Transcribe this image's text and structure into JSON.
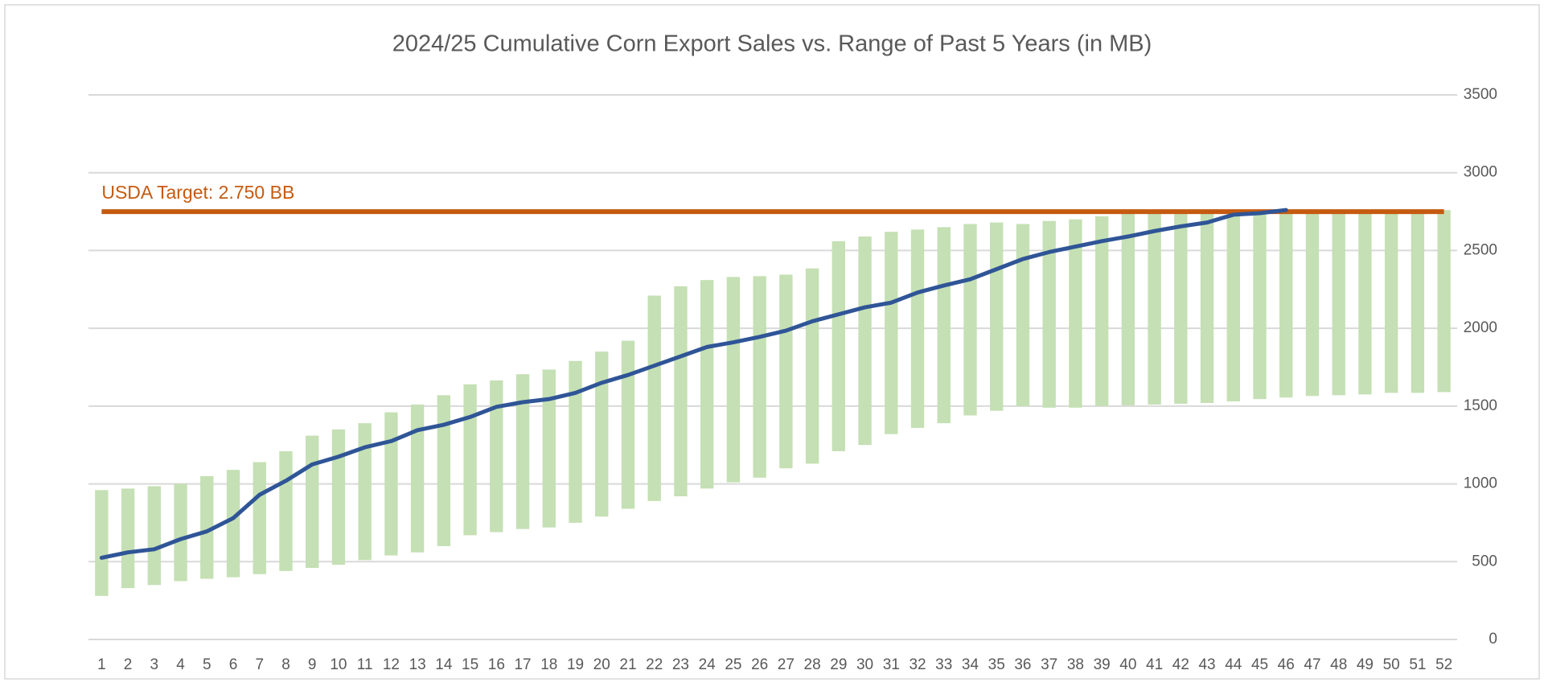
{
  "chart_data": {
    "type": "range-bar-line",
    "title": "2024/25 Cumulative Corn Export Sales vs. Range of Past 5 Years (in MB)",
    "categories": [
      "1",
      "2",
      "3",
      "4",
      "5",
      "6",
      "7",
      "8",
      "9",
      "10",
      "11",
      "12",
      "13",
      "14",
      "15",
      "16",
      "17",
      "18",
      "19",
      "20",
      "21",
      "22",
      "23",
      "24",
      "25",
      "26",
      "27",
      "28",
      "29",
      "30",
      "31",
      "32",
      "33",
      "34",
      "35",
      "36",
      "37",
      "38",
      "39",
      "40",
      "41",
      "42",
      "43",
      "44",
      "45",
      "46",
      "47",
      "48",
      "49",
      "50",
      "51",
      "52"
    ],
    "range_low": [
      280,
      330,
      350,
      375,
      390,
      400,
      420,
      440,
      460,
      480,
      510,
      540,
      560,
      600,
      670,
      690,
      710,
      720,
      750,
      790,
      840,
      890,
      920,
      970,
      1010,
      1040,
      1100,
      1130,
      1210,
      1250,
      1320,
      1360,
      1390,
      1440,
      1470,
      1500,
      1490,
      1490,
      1500,
      1505,
      1510,
      1515,
      1520,
      1530,
      1545,
      1555,
      1565,
      1570,
      1575,
      1585,
      1585,
      1590
    ],
    "range_high": [
      960,
      970,
      985,
      1000,
      1050,
      1090,
      1140,
      1210,
      1310,
      1350,
      1390,
      1460,
      1510,
      1570,
      1640,
      1665,
      1705,
      1735,
      1790,
      1850,
      1920,
      2210,
      2270,
      2310,
      2330,
      2335,
      2345,
      2385,
      2560,
      2590,
      2620,
      2635,
      2650,
      2670,
      2680,
      2670,
      2690,
      2700,
      2720,
      2750,
      2750,
      2750,
      2750,
      2750,
      2750,
      2760,
      2760,
      2760,
      2760,
      2760,
      2760,
      2760
    ],
    "range_color": "#c5e0b4",
    "values": [
      525,
      560,
      580,
      645,
      695,
      780,
      930,
      1020,
      1125,
      1175,
      1235,
      1275,
      1345,
      1380,
      1430,
      1495,
      1525,
      1545,
      1585,
      1650,
      1700,
      1760,
      1820,
      1880,
      1910,
      1945,
      1985,
      2045,
      2090,
      2135,
      2165,
      2230,
      2275,
      2315,
      2380,
      2445,
      2490,
      2525,
      2560,
      2590,
      2625,
      2655,
      2680,
      2730,
      2740,
      2760,
      null,
      null,
      null,
      null,
      null,
      null
    ],
    "line_color": "#2f5597",
    "target": {
      "value": 2750,
      "label": "USDA Target: 2.750 BB",
      "color": "#c55a11"
    },
    "ylim": [
      0,
      3500
    ],
    "yticks": [
      0,
      500,
      1000,
      1500,
      2000,
      2500,
      3000,
      3500
    ],
    "grid": true,
    "y_axis_side": "right"
  }
}
